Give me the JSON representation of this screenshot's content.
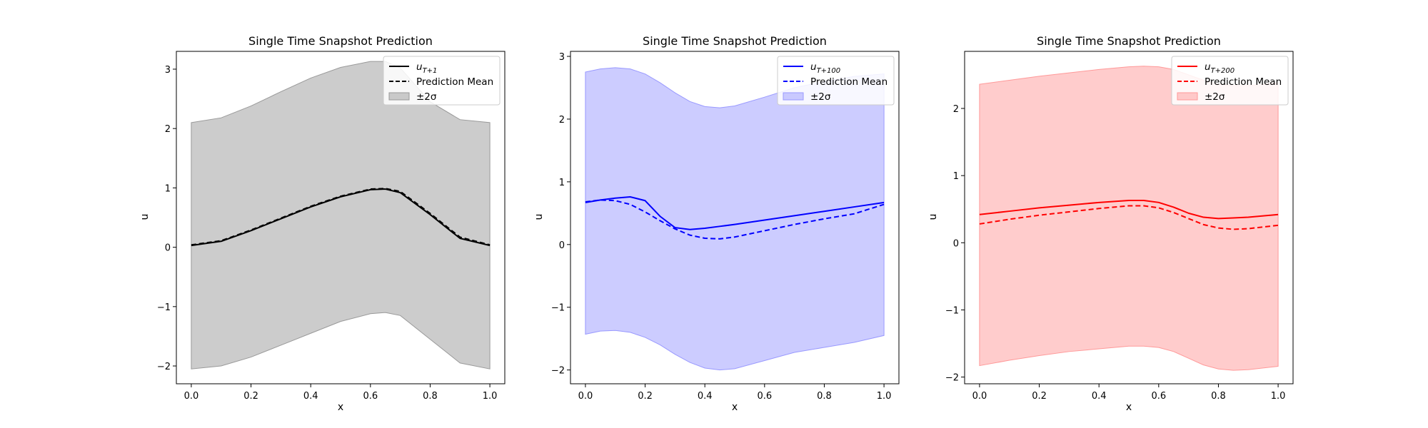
{
  "chart_data": [
    {
      "type": "line",
      "title": "Single Time Snapshot Prediction",
      "xlabel": "x",
      "ylabel": "u",
      "xlim": [
        -0.05,
        1.05
      ],
      "ylim": [
        -2.3,
        3.3
      ],
      "xticks": [
        "0.0",
        "0.2",
        "0.4",
        "0.6",
        "0.8",
        "1.0"
      ],
      "yticks": [
        "−2",
        "−1",
        "0",
        "1",
        "2",
        "3"
      ],
      "color": "#000000",
      "band_color": "#999999",
      "legend": {
        "placement": "top-right",
        "entries": [
          {
            "label": "u",
            "subscript": "T+1",
            "style": "solid"
          },
          {
            "label": "Prediction Mean",
            "style": "dashed"
          },
          {
            "label": "±2σ",
            "style": "band"
          }
        ]
      },
      "x": [
        0.0,
        0.1,
        0.2,
        0.3,
        0.4,
        0.5,
        0.6,
        0.65,
        0.7,
        0.8,
        0.9,
        1.0
      ],
      "series": [
        {
          "name": "u_{T+1}",
          "style": "solid",
          "values": [
            0.03,
            0.1,
            0.28,
            0.48,
            0.68,
            0.85,
            0.97,
            0.98,
            0.92,
            0.55,
            0.15,
            0.03
          ]
        },
        {
          "name": "Prediction Mean",
          "style": "dashed",
          "values": [
            0.04,
            0.11,
            0.29,
            0.49,
            0.69,
            0.86,
            0.98,
            0.99,
            0.94,
            0.57,
            0.17,
            0.04
          ]
        }
      ],
      "band": {
        "upper": [
          2.1,
          2.18,
          2.38,
          2.62,
          2.85,
          3.03,
          3.13,
          3.13,
          3.02,
          2.45,
          2.15,
          2.1
        ],
        "lower": [
          -2.05,
          -2.0,
          -1.85,
          -1.65,
          -1.45,
          -1.25,
          -1.12,
          -1.1,
          -1.15,
          -1.55,
          -1.95,
          -2.05
        ]
      }
    },
    {
      "type": "line",
      "title": "Single Time Snapshot Prediction",
      "xlabel": "x",
      "ylabel": "u",
      "xlim": [
        -0.05,
        1.05
      ],
      "ylim": [
        -2.22,
        3.08
      ],
      "xticks": [
        "0.0",
        "0.2",
        "0.4",
        "0.6",
        "0.8",
        "1.0"
      ],
      "yticks": [
        "−2",
        "−1",
        "0",
        "1",
        "2",
        "3"
      ],
      "color": "#0000ff",
      "band_color": "#9999ff",
      "legend": {
        "placement": "top-right",
        "entries": [
          {
            "label": "u",
            "subscript": "T+100",
            "style": "solid"
          },
          {
            "label": "Prediction Mean",
            "style": "dashed"
          },
          {
            "label": "±2σ",
            "style": "band"
          }
        ]
      },
      "x": [
        0.0,
        0.05,
        0.1,
        0.15,
        0.2,
        0.25,
        0.3,
        0.35,
        0.4,
        0.45,
        0.5,
        0.6,
        0.7,
        0.8,
        0.9,
        1.0
      ],
      "series": [
        {
          "name": "u_{T+100}",
          "style": "solid",
          "values": [
            0.67,
            0.71,
            0.74,
            0.76,
            0.7,
            0.45,
            0.27,
            0.24,
            0.26,
            0.29,
            0.32,
            0.39,
            0.46,
            0.53,
            0.6,
            0.67
          ]
        },
        {
          "name": "Prediction Mean",
          "style": "dashed",
          "values": [
            0.68,
            0.71,
            0.7,
            0.64,
            0.52,
            0.38,
            0.25,
            0.15,
            0.1,
            0.09,
            0.12,
            0.22,
            0.32,
            0.41,
            0.49,
            0.64
          ]
        }
      ],
      "band": {
        "upper": [
          2.75,
          2.8,
          2.82,
          2.8,
          2.72,
          2.58,
          2.42,
          2.28,
          2.2,
          2.18,
          2.21,
          2.35,
          2.5,
          2.6,
          2.68,
          2.72
        ],
        "lower": [
          -1.43,
          -1.38,
          -1.37,
          -1.4,
          -1.48,
          -1.6,
          -1.75,
          -1.88,
          -1.97,
          -2.0,
          -1.98,
          -1.85,
          -1.72,
          -1.64,
          -1.56,
          -1.45
        ]
      }
    },
    {
      "type": "line",
      "title": "Single Time Snapshot Prediction",
      "xlabel": "x",
      "ylabel": "u",
      "xlim": [
        -0.05,
        1.05
      ],
      "ylim": [
        -2.1,
        2.85
      ],
      "xticks": [
        "0.0",
        "0.2",
        "0.4",
        "0.6",
        "0.8",
        "1.0"
      ],
      "yticks": [
        "−2",
        "−1",
        "0",
        "1",
        "2"
      ],
      "color": "#ff0000",
      "band_color": "#ff9999",
      "legend": {
        "placement": "top-right",
        "entries": [
          {
            "label": "u",
            "subscript": "T+200",
            "style": "solid"
          },
          {
            "label": "Prediction Mean",
            "style": "dashed"
          },
          {
            "label": "±2σ",
            "style": "band"
          }
        ]
      },
      "x": [
        0.0,
        0.1,
        0.2,
        0.3,
        0.4,
        0.5,
        0.55,
        0.6,
        0.65,
        0.7,
        0.75,
        0.8,
        0.85,
        0.9,
        1.0
      ],
      "series": [
        {
          "name": "u_{T+200}",
          "style": "solid",
          "values": [
            0.42,
            0.47,
            0.52,
            0.56,
            0.6,
            0.63,
            0.63,
            0.6,
            0.53,
            0.44,
            0.38,
            0.36,
            0.37,
            0.38,
            0.42
          ]
        },
        {
          "name": "Prediction Mean",
          "style": "dashed",
          "values": [
            0.28,
            0.35,
            0.41,
            0.46,
            0.51,
            0.55,
            0.55,
            0.52,
            0.45,
            0.36,
            0.27,
            0.22,
            0.2,
            0.21,
            0.26
          ]
        }
      ],
      "band": {
        "upper": [
          2.36,
          2.42,
          2.48,
          2.53,
          2.58,
          2.62,
          2.63,
          2.62,
          2.58,
          2.5,
          2.42,
          2.36,
          2.34,
          2.34,
          2.38
        ],
        "lower": [
          -1.83,
          -1.75,
          -1.68,
          -1.62,
          -1.58,
          -1.54,
          -1.54,
          -1.56,
          -1.62,
          -1.72,
          -1.82,
          -1.88,
          -1.9,
          -1.89,
          -1.84
        ]
      }
    }
  ]
}
